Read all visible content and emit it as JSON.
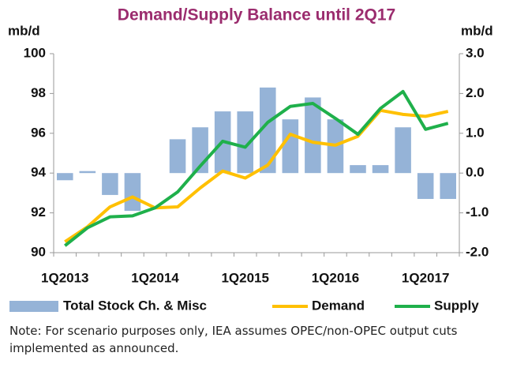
{
  "chart_data": {
    "type": "bar_line",
    "title": "Demand/Supply Balance until 2Q17",
    "y_label": "mb/d",
    "y2_label": "mb/d",
    "categories": [
      "1Q2013",
      null,
      null,
      null,
      "1Q2014",
      null,
      null,
      null,
      "1Q2015",
      null,
      null,
      null,
      "1Q2016",
      null,
      null,
      null,
      "1Q2017",
      null
    ],
    "ylim": [
      90,
      100
    ],
    "yticks": [
      90,
      92,
      94,
      96,
      98,
      100
    ],
    "y2lim": [
      -2,
      3
    ],
    "y2ticks": [
      {
        "value": -2,
        "label": "-2.0"
      },
      {
        "value": -1,
        "label": "-1.0"
      },
      {
        "value": 0,
        "label": "0.0"
      },
      {
        "value": 1,
        "label": "1.0"
      },
      {
        "value": 2,
        "label": "2.0"
      },
      {
        "value": 3,
        "label": "3.0"
      }
    ],
    "grid": false,
    "series": [
      {
        "name": "Total Stock Ch. & Misc",
        "type": "bar",
        "axis": "y2",
        "color": "#95b3d7",
        "values": [
          -0.18,
          0.05,
          -0.55,
          -0.95,
          0,
          0.85,
          1.15,
          1.55,
          1.55,
          2.15,
          1.35,
          1.9,
          1.35,
          0.2,
          0.2,
          1.15,
          -0.65,
          -0.65
        ]
      },
      {
        "name": "Demand",
        "type": "line",
        "color": "#ffc000",
        "values": [
          90.55,
          91.3,
          92.3,
          92.8,
          92.25,
          92.3,
          93.25,
          94.1,
          93.75,
          94.4,
          95.95,
          95.55,
          95.4,
          95.85,
          97.15,
          96.95,
          96.85,
          97.1
        ]
      },
      {
        "name": "Supply",
        "type": "line",
        "color": "#1fb04b",
        "values": [
          90.35,
          91.25,
          91.8,
          91.85,
          92.25,
          93.05,
          94.35,
          95.6,
          95.3,
          96.55,
          97.35,
          97.5,
          96.75,
          95.95,
          97.25,
          98.1,
          96.2,
          96.5
        ]
      }
    ],
    "note": "Note: For scenario purposes only, IEA assumes OPEC/non-OPEC output cuts implemented as announced."
  }
}
